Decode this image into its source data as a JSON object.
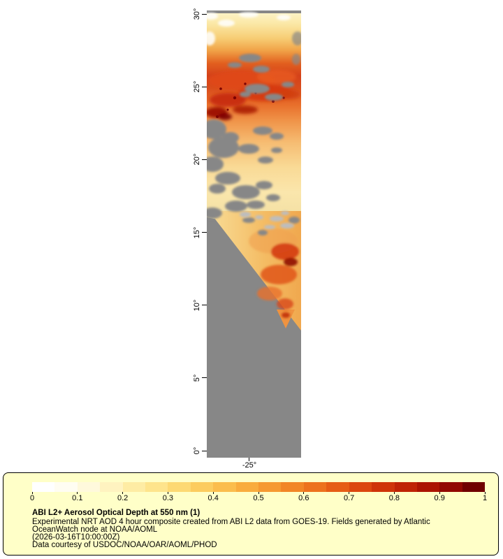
{
  "map": {
    "y_axis_labels": [
      "30°",
      "25°",
      "20°",
      "15°",
      "10°",
      "5°",
      "0°"
    ],
    "x_axis_label": "-25°"
  },
  "legend": {
    "ticks": [
      "0",
      "0.1",
      "0.2",
      "0.3",
      "0.4",
      "0.5",
      "0.6",
      "0.7",
      "0.8",
      "0.9",
      "1"
    ],
    "colorbar_colors": [
      "#FFFFFF",
      "#FFFDF2",
      "#FFF9DC",
      "#FFF3C0",
      "#FEECA4",
      "#FEE48C",
      "#FDD973",
      "#FCCC5F",
      "#FBBD4D",
      "#F9AC3E",
      "#F69932",
      "#F28627",
      "#ED721E",
      "#E65D16",
      "#DC470F",
      "#CF3409",
      "#BF2305",
      "#AB1402",
      "#920801",
      "#700000"
    ],
    "title": "ABI L2+ Aerosol Optical Depth at 550 nm (1)",
    "description_line1": "Experimental NRT AOD 4 hour composite created from ABI L2 data from GOES-19. Fields generated by Atlantic",
    "description_line2": "OceanWatch node at NOAA/AOML",
    "timestamp": "(2026-03-16T10:00:00Z)",
    "credit": "Data courtesy of USDOC/NOAA/OAR/AOML/PHOD"
  },
  "colors": {
    "no_data_gray": "#878787",
    "legend_background": "#FFFFC8",
    "page_background": "#FFFFFF"
  },
  "chart_data": {
    "type": "heatmap",
    "title": "ABI L2+ Aerosol Optical Depth at 550 nm (1)",
    "variable": "Aerosol Optical Depth at 550 nm",
    "colorbar": {
      "range": [
        0,
        1
      ],
      "ticks": [
        0,
        0.1,
        0.2,
        0.3,
        0.4,
        0.5,
        0.6,
        0.7,
        0.8,
        0.9,
        1
      ],
      "colors": [
        "#FFFFFF",
        "#FFFDF2",
        "#FFF9DC",
        "#FFF3C0",
        "#FEECA4",
        "#FEE48C",
        "#FDD973",
        "#FCCC5F",
        "#FBBD4D",
        "#F9AC3E",
        "#F69932",
        "#F28627",
        "#ED721E",
        "#E65D16",
        "#DC470F",
        "#CF3409",
        "#BF2305",
        "#AB1402",
        "#920801",
        "#700000"
      ]
    },
    "y_axis": {
      "tick_labels": [
        "0°",
        "5°",
        "10°",
        "15°",
        "20°",
        "25°",
        "30°"
      ],
      "range_deg": [
        0,
        30
      ]
    },
    "x_axis": {
      "tick_labels": [
        "-25°"
      ]
    },
    "no_data_color": "#878787",
    "features": "Dense aerosol plume (AOD 0.5-1.0) band near 23°-27°; moderate plume 0.2-0.5 from 17°-23°; secondary plume with high AOD core near 11°-15° along right edge; gray = clouds / no data elsewhere"
  }
}
